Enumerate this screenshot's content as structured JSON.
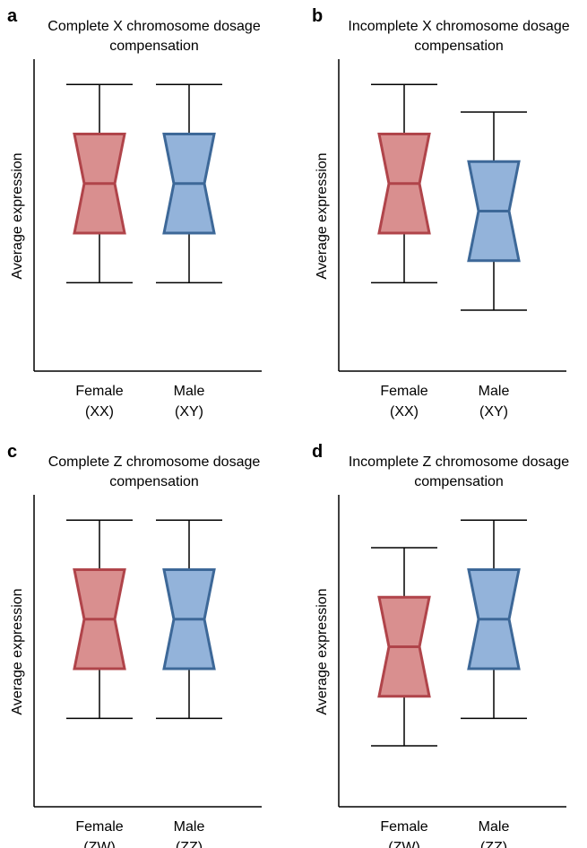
{
  "colors": {
    "female_fill": "#d98f8f",
    "female_stroke": "#b0444a",
    "male_fill": "#93b3da",
    "male_stroke": "#3d6898",
    "axis": "#000000"
  },
  "chart_data": [
    {
      "panel": "a",
      "type": "boxplot",
      "title_lines": [
        "Complete X chromosome dosage",
        "compensation"
      ],
      "ylabel": "Average expression",
      "xlabel": "",
      "grid": false,
      "notched": true,
      "ylim": [
        0,
        10
      ],
      "series": [
        {
          "name": "",
          "category_lines": [
            "Female",
            "(XX)"
          ],
          "color": "female",
          "whisker_low": 2.4,
          "q1": 4.2,
          "median": 6.0,
          "q3": 7.8,
          "whisker_high": 9.6
        },
        {
          "name": "",
          "category_lines": [
            "Male",
            "(XY)"
          ],
          "color": "male",
          "whisker_low": 2.4,
          "q1": 4.2,
          "median": 6.0,
          "q3": 7.8,
          "whisker_high": 9.6
        }
      ]
    },
    {
      "panel": "b",
      "type": "boxplot",
      "title_lines": [
        "Incomplete X chromosome dosage",
        "compensation"
      ],
      "ylabel": "Average expression",
      "xlabel": "",
      "grid": false,
      "notched": true,
      "ylim": [
        0,
        10
      ],
      "series": [
        {
          "name": "",
          "category_lines": [
            "Female",
            "(XX)"
          ],
          "color": "female",
          "whisker_low": 2.4,
          "q1": 4.2,
          "median": 6.0,
          "q3": 7.8,
          "whisker_high": 9.6
        },
        {
          "name": "",
          "category_lines": [
            "Male",
            "(XY)"
          ],
          "color": "male",
          "whisker_low": 1.4,
          "q1": 3.2,
          "median": 5.0,
          "q3": 6.8,
          "whisker_high": 8.6
        }
      ]
    },
    {
      "panel": "c",
      "type": "boxplot",
      "title_lines": [
        "Complete Z chromosome dosage",
        "compensation"
      ],
      "ylabel": "Average expression",
      "xlabel": "",
      "grid": false,
      "notched": true,
      "ylim": [
        0,
        10
      ],
      "series": [
        {
          "name": "",
          "category_lines": [
            "Female",
            "(ZW)"
          ],
          "color": "female",
          "whisker_low": 2.4,
          "q1": 4.2,
          "median": 6.0,
          "q3": 7.8,
          "whisker_high": 9.6
        },
        {
          "name": "",
          "category_lines": [
            "Male",
            "(ZZ)"
          ],
          "color": "male",
          "whisker_low": 2.4,
          "q1": 4.2,
          "median": 6.0,
          "q3": 7.8,
          "whisker_high": 9.6
        }
      ]
    },
    {
      "panel": "d",
      "type": "boxplot",
      "title_lines": [
        "Incomplete Z chromosome dosage",
        "compensation"
      ],
      "ylabel": "Average expression",
      "xlabel": "",
      "grid": false,
      "notched": true,
      "ylim": [
        0,
        10
      ],
      "series": [
        {
          "name": "",
          "category_lines": [
            "Female",
            "(ZW)"
          ],
          "color": "female",
          "whisker_low": 1.4,
          "q1": 3.2,
          "median": 5.0,
          "q3": 6.8,
          "whisker_high": 8.6
        },
        {
          "name": "",
          "category_lines": [
            "Male",
            "(ZZ)"
          ],
          "color": "male",
          "whisker_low": 2.4,
          "q1": 4.2,
          "median": 6.0,
          "q3": 7.8,
          "whisker_high": 9.6
        }
      ]
    }
  ]
}
